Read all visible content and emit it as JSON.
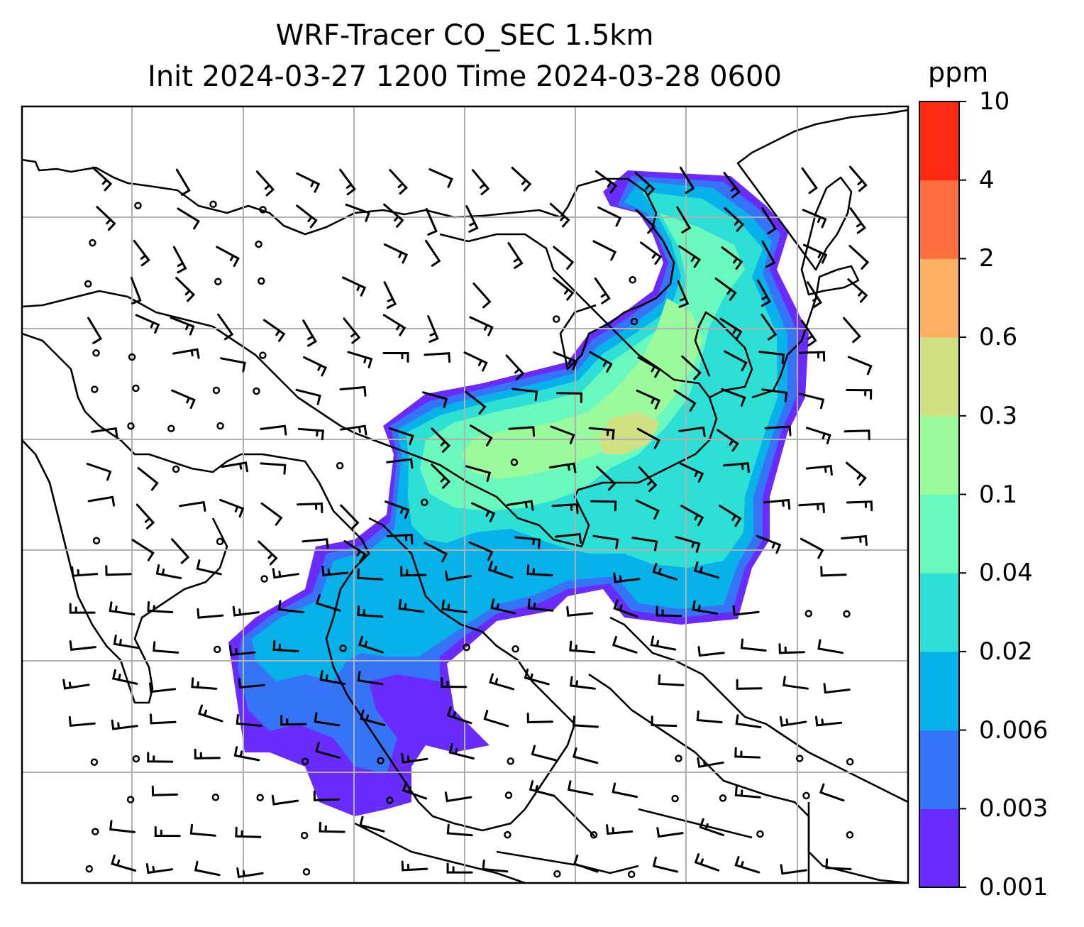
{
  "title": {
    "line1": "WRF-Tracer CO_SEC 1.5km",
    "line2": "Init 2024-03-27 1200 Time 2024-03-28 0600"
  },
  "colorbar": {
    "units": "ppm",
    "tick_labels": [
      "10",
      "4",
      "2",
      "0.6",
      "0.3",
      "0.1",
      "0.04",
      "0.02",
      "0.006",
      "0.003",
      "0.001"
    ],
    "levels": [
      {
        "low": "0.001",
        "high": "0.003",
        "color": "#6a2bff"
      },
      {
        "low": "0.003",
        "high": "0.006",
        "color": "#3574f6"
      },
      {
        "low": "0.006",
        "high": "0.02",
        "color": "#07b1ea"
      },
      {
        "low": "0.02",
        "high": "0.04",
        "color": "#2edfd6"
      },
      {
        "low": "0.04",
        "high": "0.1",
        "color": "#69f9bf"
      },
      {
        "low": "0.1",
        "high": "0.3",
        "color": "#9bfa9b"
      },
      {
        "low": "0.3",
        "high": "0.6",
        "color": "#d2e084"
      },
      {
        "low": "0.6",
        "high": "2",
        "color": "#fdb263"
      },
      {
        "low": "2",
        "high": "4",
        "color": "#ff7040"
      },
      {
        "low": "4",
        "high": "10",
        "color": "#fd2b14"
      }
    ]
  },
  "map": {
    "field": "CO_SEC tracer concentration at 1.5km",
    "gridlines": "on",
    "coastlines": "black",
    "wind_barbs": "black",
    "gridline_color": "#b0b0b0"
  }
}
